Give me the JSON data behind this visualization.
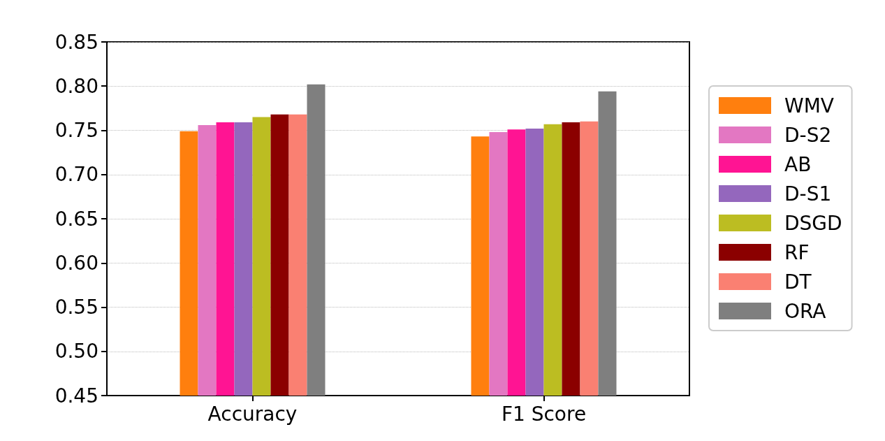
{
  "chart_data": {
    "type": "bar",
    "categories": [
      "Accuracy",
      "F1 Score"
    ],
    "series": [
      {
        "name": "WMV",
        "color": "#ff7f0e",
        "values": [
          0.749,
          0.743
        ]
      },
      {
        "name": "D-S2",
        "color": "#e377c2",
        "values": [
          0.756,
          0.748
        ]
      },
      {
        "name": "AB",
        "color": "#ff1493",
        "values": [
          0.759,
          0.751
        ]
      },
      {
        "name": "D-S1",
        "color": "#9467bd",
        "values": [
          0.759,
          0.752
        ]
      },
      {
        "name": "DSGD",
        "color": "#bcbd22",
        "values": [
          0.765,
          0.757
        ]
      },
      {
        "name": "RF",
        "color": "#8b0000",
        "values": [
          0.768,
          0.759
        ]
      },
      {
        "name": "DT",
        "color": "#fa8072",
        "values": [
          0.768,
          0.76
        ]
      },
      {
        "name": "ORA",
        "color": "#7f7f7f",
        "values": [
          0.802,
          0.794
        ]
      }
    ],
    "ylim": [
      0.45,
      0.85
    ],
    "yticks": [
      0.45,
      {
        "value": 0.5,
        "label": "0.50"
      },
      0.55,
      {
        "value": 0.6,
        "label": "0.60"
      },
      0.65,
      {
        "value": 0.7,
        "label": "0.70"
      },
      0.75,
      {
        "value": 0.8,
        "label": "0.80"
      },
      0.85
    ],
    "grid": "y",
    "legend": "right"
  }
}
